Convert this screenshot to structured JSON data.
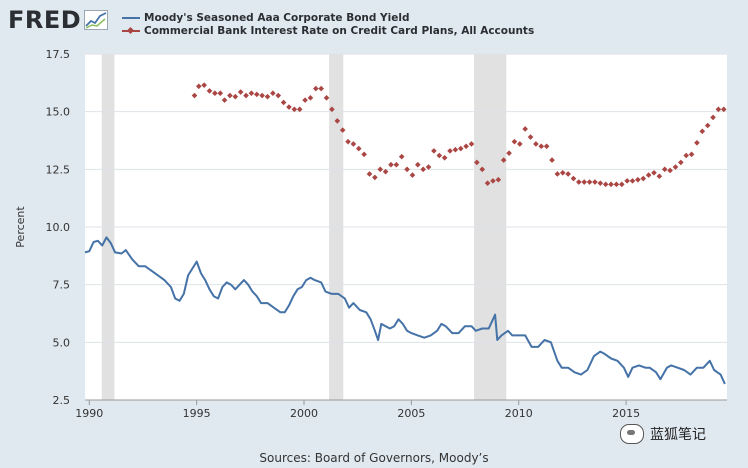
{
  "logo": {
    "text": "FRED"
  },
  "legend": {
    "items": [
      {
        "label": "Moody's Seasoned Aaa Corporate Bond Yield",
        "color": "#4572a7",
        "marker": "line"
      },
      {
        "label": "Commercial Bank Interest Rate on Credit Card Plans, All Accounts",
        "color": "#aa4643",
        "marker": "diamond"
      }
    ]
  },
  "source": "Sources: Board of Governors, Moody’s",
  "watermark": "蓝狐笔记",
  "chart_data": {
    "type": "line",
    "ylabel": "Percent",
    "xlim": [
      1989.8,
      2019.7
    ],
    "ylim": [
      2.5,
      17.5
    ],
    "x_ticks": [
      1990,
      1995,
      2000,
      2005,
      2010,
      2015
    ],
    "y_ticks": [
      "2.5",
      "5.0",
      "7.5",
      "10.0",
      "12.5",
      "15.0",
      "17.5"
    ],
    "grid": "horizontal",
    "recessions": [
      [
        1990.58,
        1991.17
      ],
      [
        2001.17,
        2001.83
      ],
      [
        2007.92,
        2009.42
      ]
    ],
    "series": [
      {
        "name": "Moody's Seasoned Aaa Corporate Bond Yield",
        "kind": "line",
        "color": "#4572a7",
        "points": [
          [
            1989.8,
            8.9
          ],
          [
            1990.0,
            8.95
          ],
          [
            1990.2,
            9.35
          ],
          [
            1990.4,
            9.4
          ],
          [
            1990.6,
            9.2
          ],
          [
            1990.8,
            9.55
          ],
          [
            1991.0,
            9.3
          ],
          [
            1991.2,
            8.9
          ],
          [
            1991.5,
            8.85
          ],
          [
            1991.7,
            9.0
          ],
          [
            1992.0,
            8.6
          ],
          [
            1992.3,
            8.3
          ],
          [
            1992.6,
            8.3
          ],
          [
            1992.9,
            8.1
          ],
          [
            1993.2,
            7.9
          ],
          [
            1993.5,
            7.7
          ],
          [
            1993.8,
            7.4
          ],
          [
            1994.0,
            6.9
          ],
          [
            1994.2,
            6.8
          ],
          [
            1994.4,
            7.1
          ],
          [
            1994.6,
            7.9
          ],
          [
            1994.8,
            8.2
          ],
          [
            1995.0,
            8.5
          ],
          [
            1995.2,
            8.0
          ],
          [
            1995.4,
            7.7
          ],
          [
            1995.6,
            7.3
          ],
          [
            1995.8,
            7.0
          ],
          [
            1996.0,
            6.9
          ],
          [
            1996.2,
            7.4
          ],
          [
            1996.4,
            7.6
          ],
          [
            1996.6,
            7.5
          ],
          [
            1996.8,
            7.3
          ],
          [
            1997.0,
            7.5
          ],
          [
            1997.2,
            7.7
          ],
          [
            1997.4,
            7.5
          ],
          [
            1997.6,
            7.2
          ],
          [
            1997.8,
            7.0
          ],
          [
            1998.0,
            6.7
          ],
          [
            1998.3,
            6.7
          ],
          [
            1998.6,
            6.5
          ],
          [
            1998.9,
            6.3
          ],
          [
            1999.1,
            6.3
          ],
          [
            1999.3,
            6.6
          ],
          [
            1999.5,
            7.0
          ],
          [
            1999.7,
            7.3
          ],
          [
            1999.9,
            7.4
          ],
          [
            2000.1,
            7.7
          ],
          [
            2000.3,
            7.8
          ],
          [
            2000.5,
            7.7
          ],
          [
            2000.8,
            7.6
          ],
          [
            2001.0,
            7.2
          ],
          [
            2001.3,
            7.1
          ],
          [
            2001.6,
            7.1
          ],
          [
            2001.9,
            6.9
          ],
          [
            2002.1,
            6.5
          ],
          [
            2002.3,
            6.7
          ],
          [
            2002.6,
            6.4
          ],
          [
            2002.9,
            6.3
          ],
          [
            2003.1,
            6.0
          ],
          [
            2003.3,
            5.5
          ],
          [
            2003.45,
            5.1
          ],
          [
            2003.6,
            5.8
          ],
          [
            2003.8,
            5.7
          ],
          [
            2004.0,
            5.6
          ],
          [
            2004.2,
            5.7
          ],
          [
            2004.4,
            6.0
          ],
          [
            2004.6,
            5.8
          ],
          [
            2004.8,
            5.5
          ],
          [
            2005.0,
            5.4
          ],
          [
            2005.3,
            5.3
          ],
          [
            2005.6,
            5.2
          ],
          [
            2005.9,
            5.3
          ],
          [
            2006.2,
            5.5
          ],
          [
            2006.4,
            5.8
          ],
          [
            2006.6,
            5.7
          ],
          [
            2006.9,
            5.4
          ],
          [
            2007.2,
            5.4
          ],
          [
            2007.5,
            5.7
          ],
          [
            2007.8,
            5.7
          ],
          [
            2008.0,
            5.5
          ],
          [
            2008.3,
            5.6
          ],
          [
            2008.6,
            5.6
          ],
          [
            2008.8,
            6.0
          ],
          [
            2008.9,
            6.2
          ],
          [
            2009.0,
            5.1
          ],
          [
            2009.2,
            5.3
          ],
          [
            2009.5,
            5.5
          ],
          [
            2009.7,
            5.3
          ],
          [
            2010.0,
            5.3
          ],
          [
            2010.3,
            5.3
          ],
          [
            2010.6,
            4.8
          ],
          [
            2010.9,
            4.8
          ],
          [
            2011.2,
            5.1
          ],
          [
            2011.5,
            5.0
          ],
          [
            2011.8,
            4.2
          ],
          [
            2012.0,
            3.9
          ],
          [
            2012.3,
            3.9
          ],
          [
            2012.6,
            3.7
          ],
          [
            2012.9,
            3.6
          ],
          [
            2013.2,
            3.8
          ],
          [
            2013.5,
            4.4
          ],
          [
            2013.8,
            4.6
          ],
          [
            2014.0,
            4.5
          ],
          [
            2014.3,
            4.3
          ],
          [
            2014.6,
            4.2
          ],
          [
            2014.9,
            3.9
          ],
          [
            2015.1,
            3.5
          ],
          [
            2015.3,
            3.9
          ],
          [
            2015.6,
            4.0
          ],
          [
            2015.9,
            3.9
          ],
          [
            2016.1,
            3.9
          ],
          [
            2016.4,
            3.7
          ],
          [
            2016.6,
            3.4
          ],
          [
            2016.9,
            3.9
          ],
          [
            2017.1,
            4.0
          ],
          [
            2017.4,
            3.9
          ],
          [
            2017.7,
            3.8
          ],
          [
            2018.0,
            3.6
          ],
          [
            2018.3,
            3.9
          ],
          [
            2018.6,
            3.9
          ],
          [
            2018.9,
            4.2
          ],
          [
            2019.1,
            3.8
          ],
          [
            2019.4,
            3.6
          ],
          [
            2019.6,
            3.2
          ]
        ]
      },
      {
        "name": "Commercial Bank Interest Rate on Credit Card Plans, All Accounts",
        "kind": "scatter",
        "marker": "diamond",
        "color": "#aa4643",
        "points": [
          [
            1994.9,
            15.7
          ],
          [
            1995.1,
            16.1
          ],
          [
            1995.35,
            16.15
          ],
          [
            1995.6,
            15.9
          ],
          [
            1995.85,
            15.8
          ],
          [
            1996.1,
            15.8
          ],
          [
            1996.3,
            15.5
          ],
          [
            1996.55,
            15.7
          ],
          [
            1996.8,
            15.65
          ],
          [
            1997.05,
            15.85
          ],
          [
            1997.3,
            15.7
          ],
          [
            1997.55,
            15.8
          ],
          [
            1997.8,
            15.75
          ],
          [
            1998.05,
            15.7
          ],
          [
            1998.3,
            15.65
          ],
          [
            1998.55,
            15.8
          ],
          [
            1998.8,
            15.7
          ],
          [
            1999.05,
            15.4
          ],
          [
            1999.3,
            15.2
          ],
          [
            1999.55,
            15.1
          ],
          [
            1999.8,
            15.1
          ],
          [
            2000.05,
            15.5
          ],
          [
            2000.3,
            15.6
          ],
          [
            2000.55,
            16.0
          ],
          [
            2000.8,
            16.0
          ],
          [
            2001.05,
            15.6
          ],
          [
            2001.3,
            15.1
          ],
          [
            2001.55,
            14.6
          ],
          [
            2001.8,
            14.2
          ],
          [
            2002.05,
            13.7
          ],
          [
            2002.3,
            13.6
          ],
          [
            2002.55,
            13.4
          ],
          [
            2002.8,
            13.15
          ],
          [
            2003.05,
            12.3
          ],
          [
            2003.3,
            12.15
          ],
          [
            2003.55,
            12.5
          ],
          [
            2003.8,
            12.4
          ],
          [
            2004.05,
            12.7
          ],
          [
            2004.3,
            12.7
          ],
          [
            2004.55,
            13.05
          ],
          [
            2004.8,
            12.5
          ],
          [
            2005.05,
            12.25
          ],
          [
            2005.3,
            12.7
          ],
          [
            2005.55,
            12.5
          ],
          [
            2005.8,
            12.6
          ],
          [
            2006.05,
            13.3
          ],
          [
            2006.3,
            13.1
          ],
          [
            2006.55,
            13.0
          ],
          [
            2006.8,
            13.3
          ],
          [
            2007.05,
            13.35
          ],
          [
            2007.3,
            13.4
          ],
          [
            2007.55,
            13.5
          ],
          [
            2007.8,
            13.6
          ],
          [
            2008.05,
            12.8
          ],
          [
            2008.3,
            12.5
          ],
          [
            2008.55,
            11.9
          ],
          [
            2008.8,
            12.0
          ],
          [
            2009.05,
            12.05
          ],
          [
            2009.3,
            12.9
          ],
          [
            2009.55,
            13.2
          ],
          [
            2009.8,
            13.7
          ],
          [
            2010.05,
            13.6
          ],
          [
            2010.3,
            14.25
          ],
          [
            2010.55,
            13.9
          ],
          [
            2010.8,
            13.6
          ],
          [
            2011.05,
            13.5
          ],
          [
            2011.3,
            13.5
          ],
          [
            2011.55,
            12.9
          ],
          [
            2011.8,
            12.3
          ],
          [
            2012.05,
            12.35
          ],
          [
            2012.3,
            12.3
          ],
          [
            2012.55,
            12.1
          ],
          [
            2012.8,
            11.95
          ],
          [
            2013.05,
            11.95
          ],
          [
            2013.3,
            11.95
          ],
          [
            2013.55,
            11.95
          ],
          [
            2013.8,
            11.9
          ],
          [
            2014.05,
            11.85
          ],
          [
            2014.3,
            11.85
          ],
          [
            2014.55,
            11.85
          ],
          [
            2014.8,
            11.85
          ],
          [
            2015.05,
            12.0
          ],
          [
            2015.3,
            12.0
          ],
          [
            2015.55,
            12.05
          ],
          [
            2015.8,
            12.1
          ],
          [
            2016.05,
            12.25
          ],
          [
            2016.3,
            12.35
          ],
          [
            2016.55,
            12.2
          ],
          [
            2016.8,
            12.5
          ],
          [
            2017.05,
            12.45
          ],
          [
            2017.3,
            12.6
          ],
          [
            2017.55,
            12.8
          ],
          [
            2017.8,
            13.1
          ],
          [
            2018.05,
            13.15
          ],
          [
            2018.3,
            13.65
          ],
          [
            2018.55,
            14.15
          ],
          [
            2018.8,
            14.4
          ],
          [
            2019.05,
            14.75
          ],
          [
            2019.3,
            15.1
          ],
          [
            2019.55,
            15.1
          ]
        ]
      }
    ]
  }
}
